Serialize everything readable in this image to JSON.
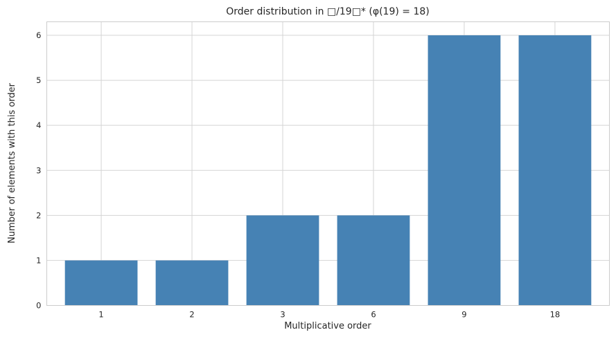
{
  "chart_data": {
    "type": "bar",
    "title": "Order distribution in □/19□*  (φ(19) = 18)",
    "xlabel": "Multiplicative order",
    "ylabel": "Number of elements with this order",
    "categories": [
      "1",
      "2",
      "3",
      "6",
      "9",
      "18"
    ],
    "values": [
      1,
      1,
      2,
      2,
      6,
      6
    ],
    "ylim": [
      0,
      6.3
    ],
    "yticks": [
      0,
      1,
      2,
      3,
      4,
      5,
      6
    ],
    "grid": true,
    "bar_color": "#4682b4"
  }
}
